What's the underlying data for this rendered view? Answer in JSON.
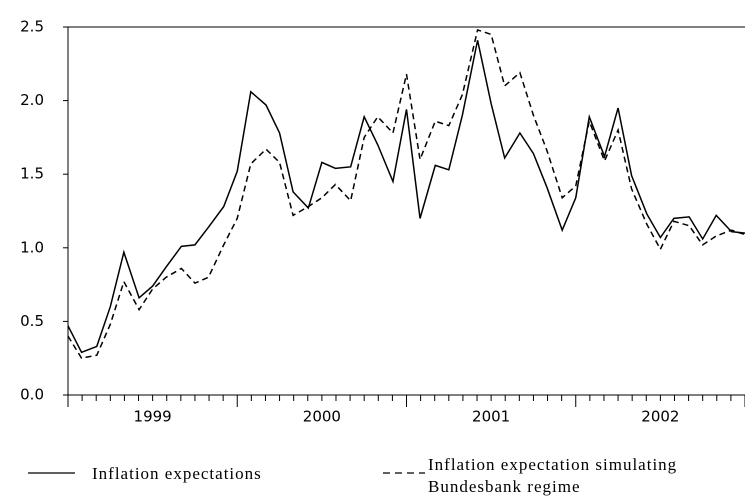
{
  "chart_data": {
    "type": "line",
    "x": [
      1999.0,
      1999.08,
      1999.17,
      1999.25,
      1999.33,
      1999.42,
      1999.5,
      1999.58,
      1999.67,
      1999.75,
      1999.83,
      1999.92,
      2000.0,
      2000.08,
      2000.17,
      2000.25,
      2000.33,
      2000.42,
      2000.5,
      2000.58,
      2000.67,
      2000.75,
      2000.83,
      2000.92,
      2001.0,
      2001.08,
      2001.17,
      2001.25,
      2001.33,
      2001.42,
      2001.5,
      2001.58,
      2001.67,
      2001.75,
      2001.83,
      2001.92,
      2002.0,
      2002.08,
      2002.17,
      2002.25,
      2002.33,
      2002.42,
      2002.5,
      2002.58,
      2002.67,
      2002.75,
      2002.83,
      2002.92,
      2003.0
    ],
    "series": [
      {
        "name": "Inflation expectations",
        "color": "#000000",
        "dash": "solid",
        "values": [
          0.47,
          0.29,
          0.33,
          0.6,
          0.97,
          0.66,
          0.74,
          0.87,
          1.01,
          1.02,
          1.14,
          1.28,
          1.52,
          2.06,
          1.97,
          1.78,
          1.38,
          1.27,
          1.58,
          1.54,
          1.55,
          1.89,
          1.7,
          1.45,
          1.94,
          1.2,
          1.56,
          1.53,
          1.9,
          2.41,
          1.98,
          1.61,
          1.78,
          1.64,
          1.41,
          1.12,
          1.34,
          1.89,
          1.62,
          1.95,
          1.49,
          1.23,
          1.07,
          1.2,
          1.21,
          1.06,
          1.22,
          1.11,
          1.1
        ]
      },
      {
        "name": "Inflation expectation simulating Bundesbank regime",
        "color": "#000000",
        "dash": "dashed",
        "values": [
          0.4,
          0.25,
          0.27,
          0.48,
          0.77,
          0.58,
          0.72,
          0.8,
          0.86,
          0.76,
          0.8,
          1.02,
          1.2,
          1.57,
          1.67,
          1.58,
          1.22,
          1.28,
          1.34,
          1.43,
          1.32,
          1.75,
          1.89,
          1.78,
          2.18,
          1.6,
          1.86,
          1.83,
          2.04,
          2.48,
          2.45,
          2.1,
          2.19,
          1.9,
          1.66,
          1.34,
          1.42,
          1.86,
          1.59,
          1.8,
          1.4,
          1.16,
          0.99,
          1.18,
          1.15,
          1.02,
          1.08,
          1.12,
          1.09
        ]
      }
    ],
    "xlim": [
      1999.0,
      2003.0
    ],
    "xticks": [
      {
        "value": 1999.5,
        "label": "1999"
      },
      {
        "value": 2000.5,
        "label": "2000"
      },
      {
        "value": 2001.5,
        "label": "2001"
      },
      {
        "value": 2002.5,
        "label": "2002"
      }
    ],
    "ylim": [
      0,
      2.5
    ],
    "yticks": [
      {
        "value": 0,
        "label": "0.0"
      },
      0.5,
      {
        "value": 1,
        "label": "1.0"
      },
      1.5,
      {
        "value": 2,
        "label": "2.0"
      },
      2.5
    ],
    "grid": false,
    "legend": "bottom"
  }
}
